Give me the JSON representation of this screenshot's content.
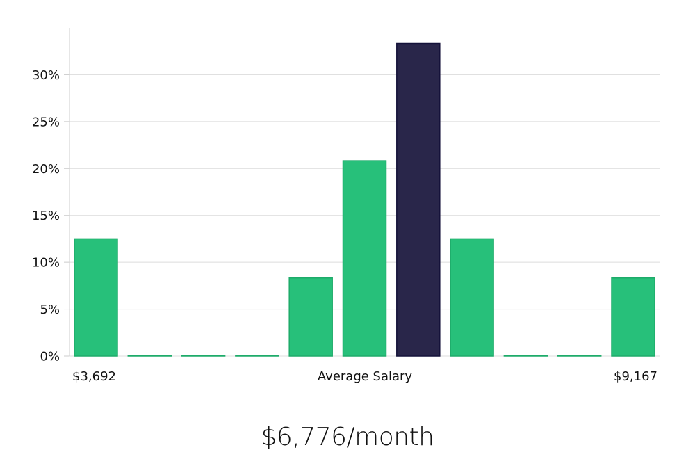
{
  "colors": {
    "bar": "#27c07a",
    "bar_edge": "#1eab6a",
    "highlight": "#29264a",
    "highlight_edge": "#14123a",
    "grid": "#dcdcdc",
    "axis": "#cccccc"
  },
  "chart_data": {
    "type": "bar",
    "values": [
      12.5,
      0,
      0,
      0,
      8.33,
      20.83,
      33.33,
      12.5,
      0,
      0,
      8.33
    ],
    "highlight_index": 6,
    "y_ticks": [
      {
        "value": 0,
        "label": "0%"
      },
      {
        "value": 5,
        "label": "5%"
      },
      {
        "value": 10,
        "label": "10%"
      },
      {
        "value": 15,
        "label": "15%"
      },
      {
        "value": 20,
        "label": "20%"
      },
      {
        "value": 25,
        "label": "25%"
      },
      {
        "value": 30,
        "label": "30%"
      }
    ],
    "ylim": [
      0,
      35
    ],
    "x_min_label": "$3,692",
    "x_max_label": "$9,167",
    "xlabel": "Average Salary",
    "grid": true
  },
  "headline": "$6,776/month"
}
